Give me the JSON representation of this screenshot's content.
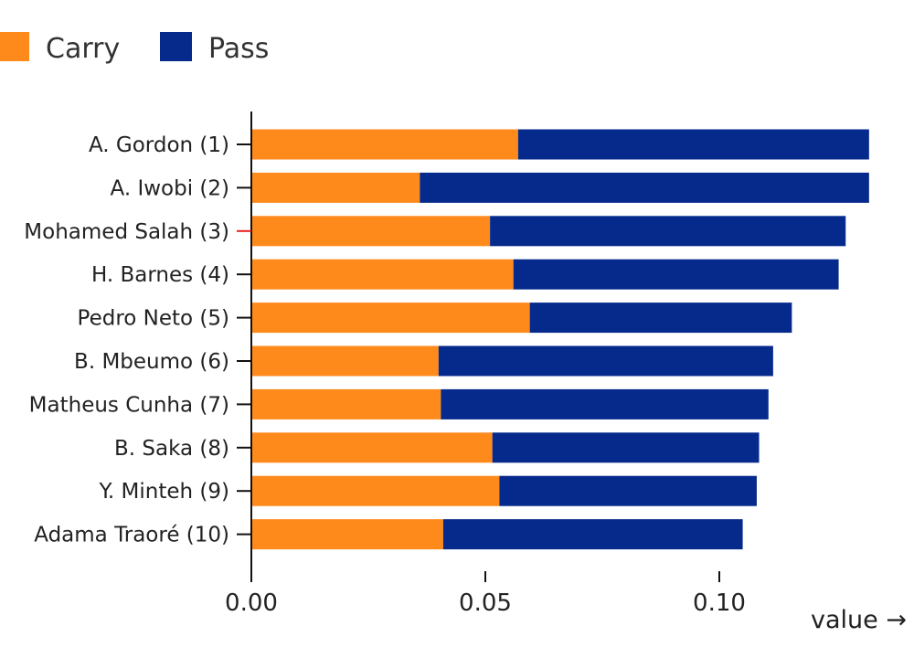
{
  "chart_data": {
    "type": "bar",
    "orientation": "horizontal",
    "stacked": true,
    "categories": [
      "A. Gordon (1)",
      "A. Iwobi (2)",
      "Mohamed Salah (3)",
      "H. Barnes (4)",
      "Pedro Neto (5)",
      "B. Mbeumo (6)",
      "Matheus Cunha (7)",
      "B. Saka (8)",
      "Y. Minteh (9)",
      "Adama Traoré (10)"
    ],
    "highlight_category": "Mohamed Salah (3)",
    "highlight_color": "#e8201a",
    "series": [
      {
        "name": "Carry",
        "color": "#ff8a1c",
        "values": [
          0.057,
          0.036,
          0.051,
          0.056,
          0.0595,
          0.04,
          0.0405,
          0.0515,
          0.053,
          0.041
        ]
      },
      {
        "name": "Pass",
        "color": "#062a8c",
        "values": [
          0.075,
          0.096,
          0.076,
          0.0695,
          0.056,
          0.0715,
          0.07,
          0.057,
          0.055,
          0.064
        ]
      }
    ],
    "xlim": [
      0,
      0.135
    ],
    "xticks": [
      "0.00",
      "0.05",
      "0.10"
    ],
    "xtick_values": [
      0,
      0.05,
      0.1
    ],
    "xlabel": "value →",
    "ylabel": "",
    "title": "",
    "grid": false,
    "legend_position": "top-left"
  }
}
